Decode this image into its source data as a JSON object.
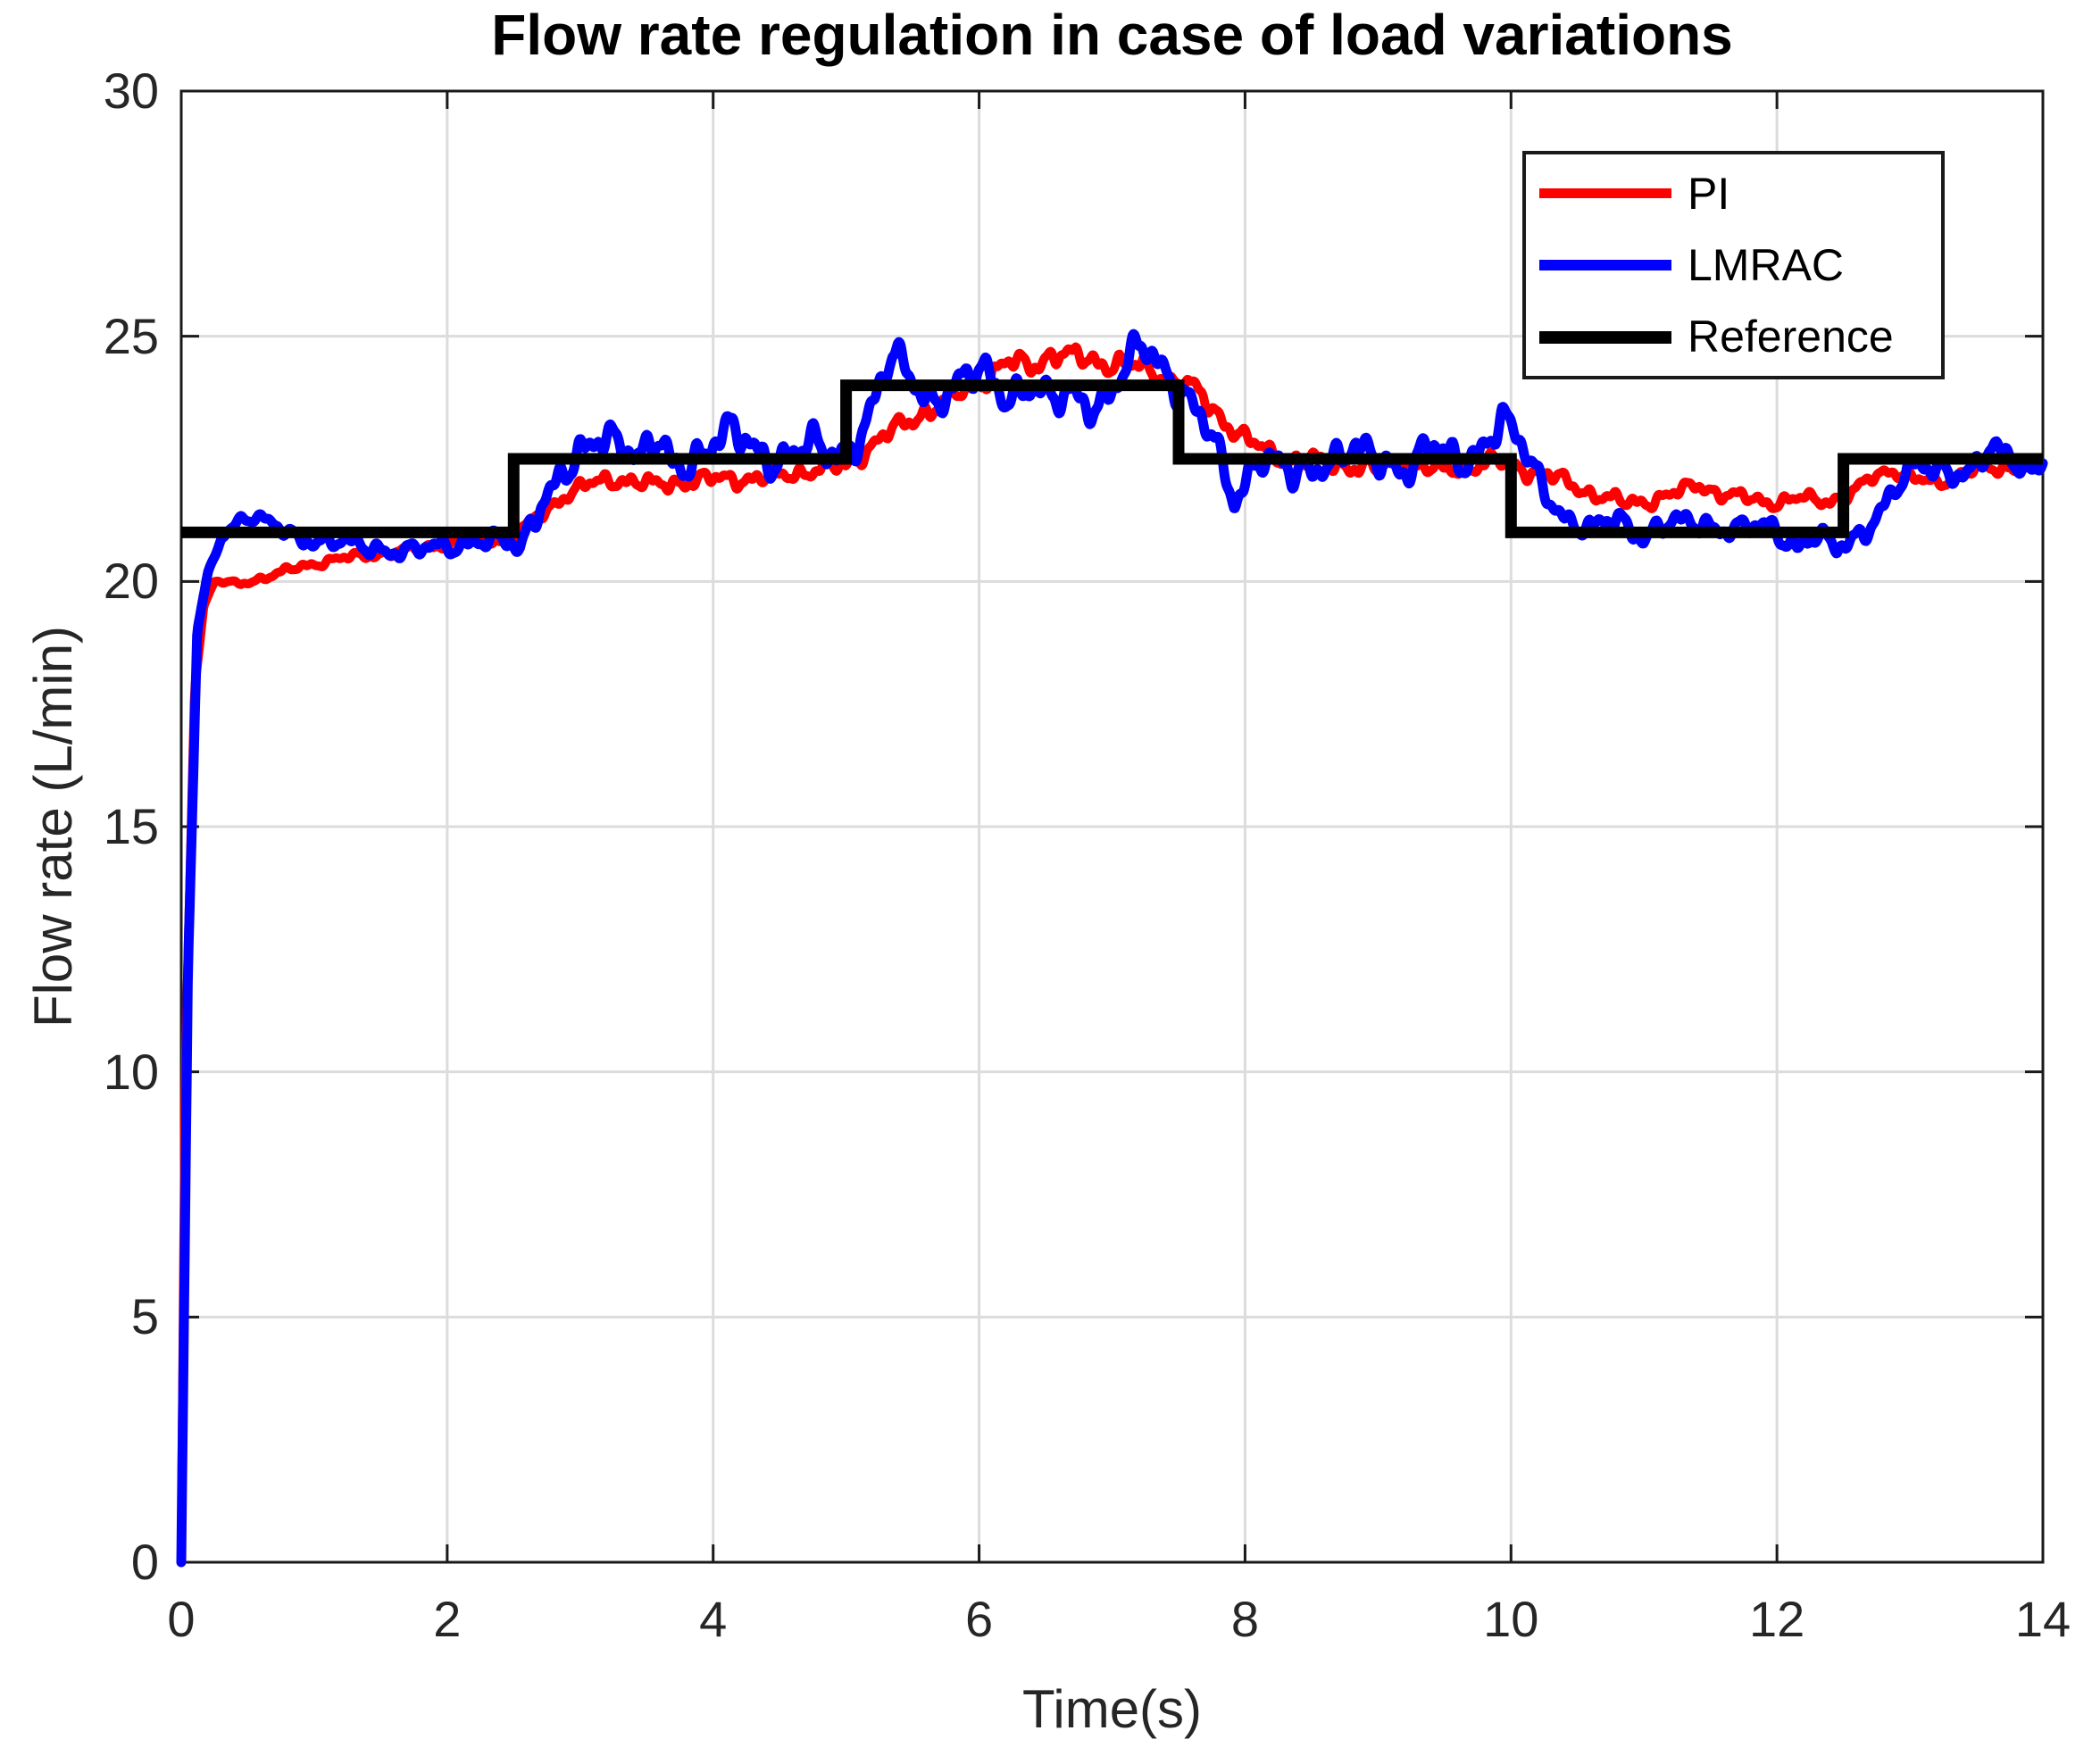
{
  "figure": {
    "background": "#ffffff",
    "axis_color": "#1a1a1a",
    "tick_label_color": "#262626",
    "grid_color": "#dcdcdc"
  },
  "chart_data": {
    "type": "line",
    "title": "Flow rate regulation in case of load variations",
    "xlabel": "Time(s)",
    "ylabel": "Flow rate (L/min)",
    "xlim": [
      0,
      14
    ],
    "ylim": [
      0,
      30
    ],
    "x_ticks": [
      0,
      2,
      4,
      6,
      8,
      10,
      12,
      14
    ],
    "x_tick_labels": [
      "0",
      "2",
      "4",
      "6",
      "8",
      "10",
      "12",
      "14"
    ],
    "y_ticks": [
      0,
      5,
      10,
      15,
      20,
      25,
      30
    ],
    "y_tick_labels": [
      "0",
      "5",
      "10",
      "15",
      "20",
      "25",
      "30"
    ],
    "grid": true,
    "legend": {
      "position": "top-right",
      "items": [
        {
          "label": "PI",
          "color": "#ff0000"
        },
        {
          "label": "LMRAC",
          "color": "#0000ff"
        },
        {
          "label": "Reference",
          "color": "#000000"
        }
      ]
    },
    "series": [
      {
        "name": "PI",
        "color": "#ff0000",
        "width": 10,
        "keypoints": [
          [
            0,
            0
          ],
          [
            0.03,
            10
          ],
          [
            0.1,
            17.8
          ],
          [
            0.17,
            19.5
          ],
          [
            0.25,
            20.0
          ],
          [
            0.45,
            19.95
          ],
          [
            0.65,
            20.1
          ],
          [
            0.9,
            20.3
          ],
          [
            1.15,
            20.45
          ],
          [
            1.45,
            20.55
          ],
          [
            1.75,
            20.65
          ],
          [
            2.05,
            20.8
          ],
          [
            2.3,
            20.85
          ],
          [
            2.5,
            20.9
          ],
          [
            2.7,
            21.35
          ],
          [
            2.9,
            21.8
          ],
          [
            3.1,
            22.0
          ],
          [
            3.3,
            22.1
          ],
          [
            3.55,
            21.95
          ],
          [
            3.8,
            22.05
          ],
          [
            4.1,
            22.1
          ],
          [
            4.4,
            22.1
          ],
          [
            4.7,
            22.25
          ],
          [
            5.0,
            22.35
          ],
          [
            5.25,
            22.9
          ],
          [
            5.55,
            23.4
          ],
          [
            5.8,
            23.75
          ],
          [
            6.0,
            24.05
          ],
          [
            6.2,
            24.45
          ],
          [
            6.4,
            24.4
          ],
          [
            6.55,
            24.65
          ],
          [
            6.75,
            24.55
          ],
          [
            7.0,
            24.45
          ],
          [
            7.25,
            24.35
          ],
          [
            7.45,
            24.1
          ],
          [
            7.6,
            23.95
          ],
          [
            7.8,
            23.4
          ],
          [
            8.0,
            22.9
          ],
          [
            8.2,
            22.6
          ],
          [
            8.45,
            22.45
          ],
          [
            8.7,
            22.4
          ],
          [
            8.95,
            22.3
          ],
          [
            9.2,
            22.45
          ],
          [
            9.45,
            22.25
          ],
          [
            9.7,
            22.35
          ],
          [
            9.9,
            22.45
          ],
          [
            10.1,
            22.3
          ],
          [
            10.35,
            22.1
          ],
          [
            10.6,
            21.8
          ],
          [
            10.85,
            21.6
          ],
          [
            11.05,
            21.65
          ],
          [
            11.25,
            21.8
          ],
          [
            11.4,
            22.0
          ],
          [
            11.6,
            21.75
          ],
          [
            11.8,
            21.7
          ],
          [
            12.0,
            21.6
          ],
          [
            12.2,
            21.7
          ],
          [
            12.4,
            21.65
          ],
          [
            12.55,
            21.75
          ],
          [
            12.7,
            22.1
          ],
          [
            12.85,
            22.3
          ],
          [
            13.0,
            22.1
          ],
          [
            13.2,
            22.0
          ],
          [
            13.45,
            22.25
          ],
          [
            13.7,
            22.3
          ],
          [
            13.9,
            22.4
          ],
          [
            14,
            22.4
          ]
        ],
        "noise": {
          "freqs": [
            2.2,
            5.4,
            9.6,
            15.8
          ],
          "weights": [
            0.4,
            0.5,
            0.27,
            0.18
          ],
          "phases": [
            3.0,
            0.7,
            3.8,
            5.2
          ],
          "amp_keypoints": [
            [
              0,
              0
            ],
            [
              0.2,
              0.03
            ],
            [
              0.8,
              0.08
            ],
            [
              2.4,
              0.11
            ],
            [
              2.9,
              0.16
            ],
            [
              3.3,
              0.18
            ],
            [
              5.0,
              0.18
            ],
            [
              5.6,
              0.22
            ],
            [
              7.5,
              0.24
            ],
            [
              8.1,
              0.2
            ],
            [
              10.0,
              0.19
            ],
            [
              10.6,
              0.16
            ],
            [
              12.5,
              0.13
            ],
            [
              14,
              0.13
            ]
          ]
        }
      },
      {
        "name": "LMRAC",
        "color": "#0000ff",
        "width": 11,
        "keypoints": [
          [
            0,
            0
          ],
          [
            0.05,
            12
          ],
          [
            0.12,
            19.0
          ],
          [
            0.2,
            20.15
          ],
          [
            0.3,
            20.9
          ],
          [
            0.45,
            21.3
          ],
          [
            0.6,
            21.25
          ],
          [
            0.8,
            21.0
          ],
          [
            1.0,
            20.85
          ],
          [
            1.25,
            20.75
          ],
          [
            1.5,
            20.68
          ],
          [
            1.75,
            20.6
          ],
          [
            2.0,
            20.72
          ],
          [
            2.2,
            20.85
          ],
          [
            2.4,
            20.8
          ],
          [
            2.55,
            20.65
          ],
          [
            2.7,
            21.7
          ],
          [
            2.85,
            22.15
          ],
          [
            3.0,
            22.4
          ],
          [
            3.15,
            22.95
          ],
          [
            3.3,
            23.05
          ],
          [
            3.45,
            22.45
          ],
          [
            3.55,
            22.85
          ],
          [
            3.7,
            22.3
          ],
          [
            3.85,
            22.55
          ],
          [
            4.0,
            22.9
          ],
          [
            4.15,
            23.0
          ],
          [
            4.3,
            22.65
          ],
          [
            4.5,
            22.55
          ],
          [
            4.7,
            22.75
          ],
          [
            4.85,
            22.55
          ],
          [
            5.0,
            22.65
          ],
          [
            5.15,
            23.3
          ],
          [
            5.35,
            24.55
          ],
          [
            5.5,
            24.1
          ],
          [
            5.65,
            23.75
          ],
          [
            5.85,
            24.0
          ],
          [
            6.05,
            24.25
          ],
          [
            6.2,
            23.85
          ],
          [
            6.4,
            24.0
          ],
          [
            6.55,
            23.55
          ],
          [
            6.7,
            23.9
          ],
          [
            6.9,
            23.6
          ],
          [
            7.08,
            24.1
          ],
          [
            7.22,
            24.85
          ],
          [
            7.35,
            24.55
          ],
          [
            7.5,
            24.0
          ],
          [
            7.75,
            22.9
          ],
          [
            7.92,
            21.7
          ],
          [
            8.1,
            22.6
          ],
          [
            8.35,
            22.1
          ],
          [
            8.6,
            22.5
          ],
          [
            8.8,
            22.65
          ],
          [
            9.0,
            22.45
          ],
          [
            9.2,
            22.35
          ],
          [
            9.4,
            22.75
          ],
          [
            9.6,
            22.35
          ],
          [
            9.8,
            22.85
          ],
          [
            9.93,
            23.35
          ],
          [
            10.08,
            22.7
          ],
          [
            10.25,
            21.9
          ],
          [
            10.45,
            21.2
          ],
          [
            10.6,
            21.0
          ],
          [
            10.8,
            21.3
          ],
          [
            11.0,
            20.95
          ],
          [
            11.2,
            21.15
          ],
          [
            11.45,
            21.2
          ],
          [
            11.7,
            21.05
          ],
          [
            11.95,
            21.1
          ],
          [
            12.15,
            20.75
          ],
          [
            12.3,
            20.95
          ],
          [
            12.45,
            20.6
          ],
          [
            12.6,
            20.9
          ],
          [
            12.75,
            21.4
          ],
          [
            12.9,
            21.9
          ],
          [
            13.05,
            22.3
          ],
          [
            13.25,
            22.35
          ],
          [
            13.45,
            22.2
          ],
          [
            13.6,
            22.6
          ],
          [
            13.75,
            22.6
          ],
          [
            13.88,
            22.3
          ],
          [
            14,
            22.5
          ]
        ],
        "noise": {
          "freqs": [
            1.7,
            4.6,
            7.9,
            13.7
          ],
          "weights": [
            0.42,
            0.52,
            0.3,
            0.2
          ],
          "phases": [
            0.9,
            2.2,
            4.1,
            1.4
          ],
          "amp_keypoints": [
            [
              0,
              0
            ],
            [
              0.2,
              0.04
            ],
            [
              0.5,
              0.1
            ],
            [
              0.9,
              0.18
            ],
            [
              2.4,
              0.2
            ],
            [
              2.7,
              0.32
            ],
            [
              3.0,
              0.4
            ],
            [
              4.9,
              0.4
            ],
            [
              5.2,
              0.36
            ],
            [
              7.45,
              0.38
            ],
            [
              7.7,
              0.34
            ],
            [
              9.9,
              0.36
            ],
            [
              10.35,
              0.25
            ],
            [
              12.4,
              0.22
            ],
            [
              12.8,
              0.26
            ],
            [
              14,
              0.27
            ]
          ]
        }
      },
      {
        "name": "Reference",
        "color": "#000000",
        "width": 13,
        "steps": [
          [
            0,
            21
          ],
          [
            2.5,
            22.5
          ],
          [
            5,
            24
          ],
          [
            7.5,
            22.5
          ],
          [
            10,
            21
          ],
          [
            12.5,
            22.5
          ]
        ],
        "x_end": 14
      }
    ]
  }
}
